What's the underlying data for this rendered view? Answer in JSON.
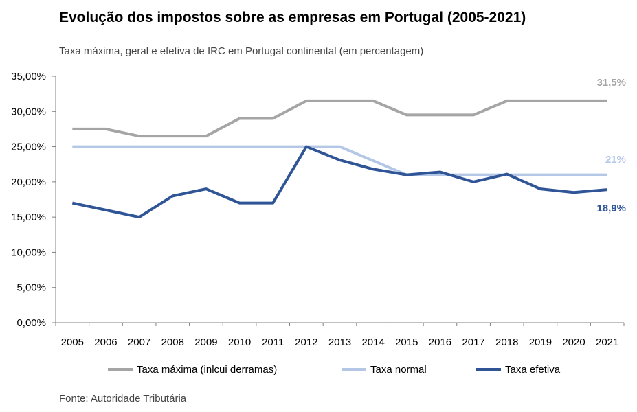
{
  "chart_data": {
    "type": "line",
    "title": "Evolução dos impostos sobre as empresas em Portugal (2005-2021)",
    "subtitle": "Taxa máxima, geral e efetiva de IRC em Portugal continental (em percentagem)",
    "source": "Fonte: Autoridade Tributária",
    "categories": [
      "2005",
      "2006",
      "2007",
      "2008",
      "2009",
      "2010",
      "2011",
      "2012",
      "2013",
      "2014",
      "2015",
      "2016",
      "2017",
      "2018",
      "2019",
      "2020",
      "2021"
    ],
    "ylim": [
      0,
      35
    ],
    "yticks": [
      "0,00%",
      "5,00%",
      "10,00%",
      "15,00%",
      "20,00%",
      "25,00%",
      "30,00%",
      "35,00%"
    ],
    "grid": false,
    "legend": "bottom",
    "series": [
      {
        "name": "Taxa máxima (inlcui derramas)",
        "color": "#A5A5A5",
        "end_label": "31,5%",
        "values": [
          27.5,
          27.5,
          26.5,
          26.5,
          26.5,
          29,
          29,
          31.5,
          31.5,
          31.5,
          29.5,
          29.5,
          29.5,
          31.5,
          31.5,
          31.5,
          31.5
        ]
      },
      {
        "name": "Taxa normal",
        "color": "#B4C7E7",
        "end_label": "21%",
        "values": [
          25,
          25,
          25,
          25,
          25,
          25,
          25,
          25,
          25,
          23,
          21,
          21,
          21,
          21,
          21,
          21,
          21
        ]
      },
      {
        "name": "Taxa efetiva",
        "color": "#2F5597",
        "end_label": "18,9%",
        "values": [
          17,
          16,
          15,
          18,
          19,
          17,
          17,
          25,
          23.1,
          21.8,
          21,
          21.4,
          20,
          21.1,
          19,
          18.5,
          18.9
        ]
      }
    ]
  }
}
